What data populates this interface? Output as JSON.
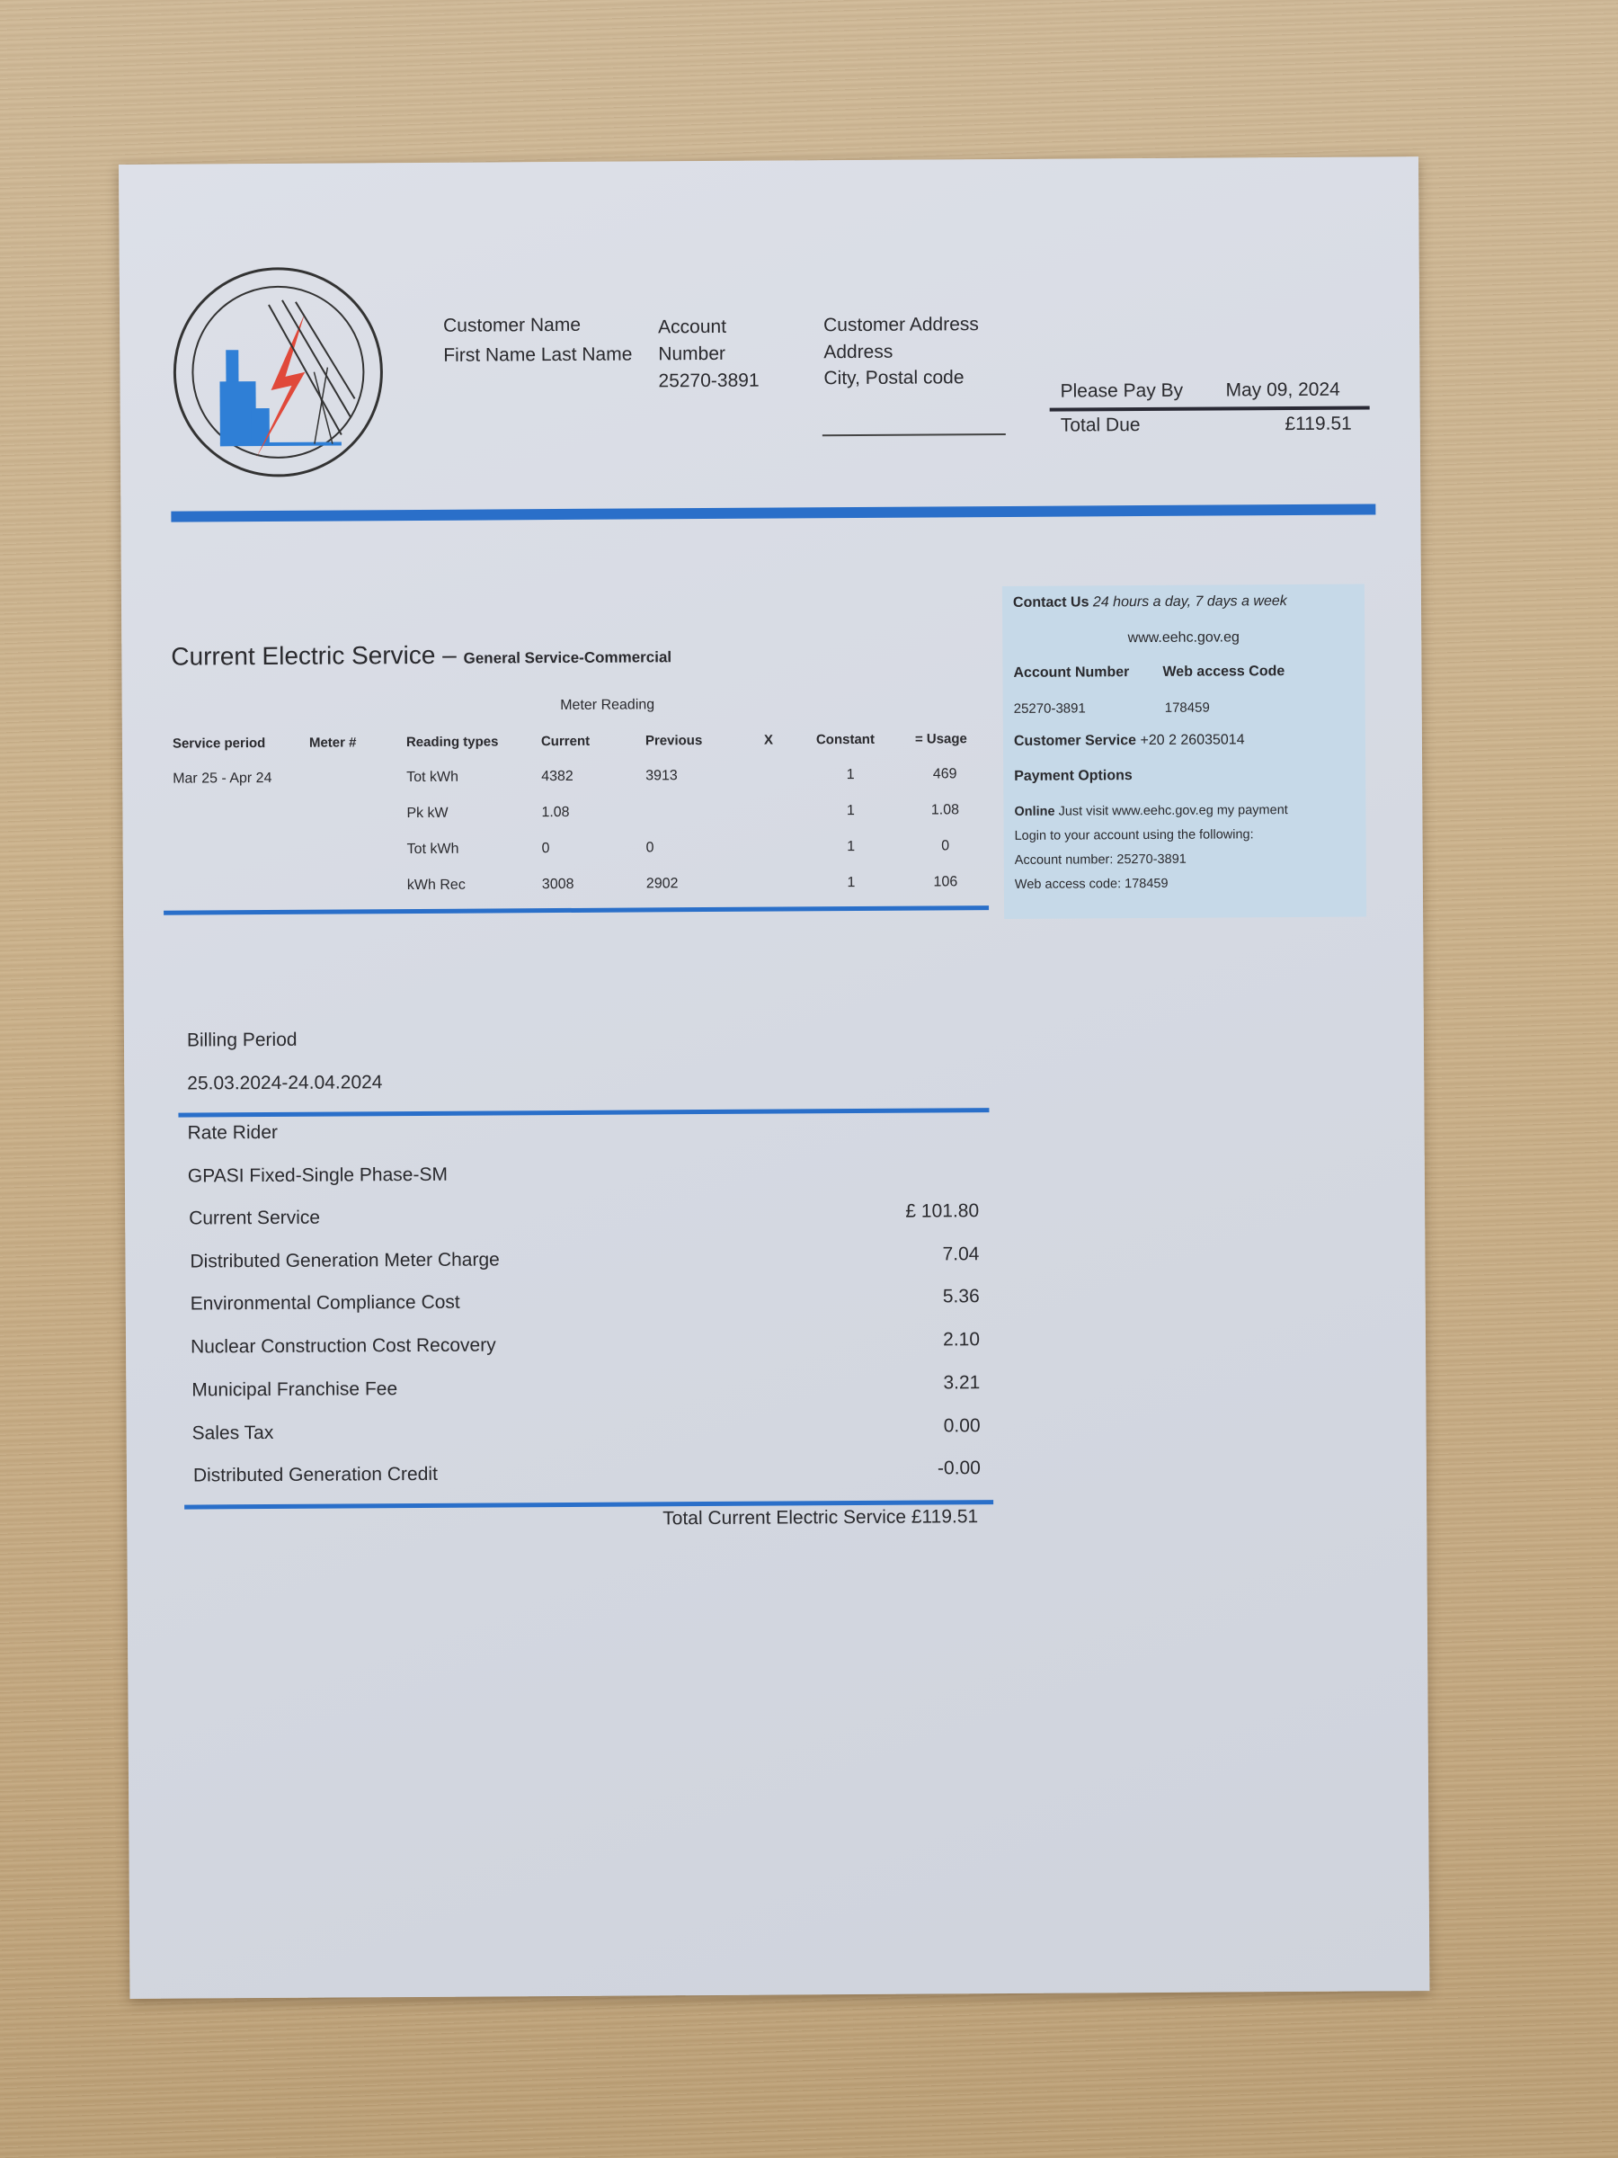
{
  "header": {
    "customer_name_label": "Customer Name",
    "customer_name": "First Name Last Name",
    "account_label_1": "Account",
    "account_label_2": "Number",
    "account_number": "25270-3891",
    "address_label": "Customer Address",
    "address_line": "Address",
    "city_line": "City, Postal code",
    "pay_by_label": "Please Pay By",
    "pay_by_date": "May 09, 2024",
    "total_due_label": "Total Due",
    "total_due": "£119.51"
  },
  "contact": {
    "title": "Contact Us",
    "hours": "24 hours a day, 7 days a week",
    "website": "www.eehc.gov.eg",
    "account_number_label": "Account Number",
    "web_access_label": "Web access Code",
    "account_number": "25270-3891",
    "web_access_code": "178459",
    "customer_service_label": "Customer Service",
    "customer_service_phone": "+20 2 26035014",
    "payment_options_label": "Payment Options",
    "online_label": "Online",
    "online_text": "Just visit  www.eehc.gov.eg  my payment",
    "login_text": "Login to your account using the following:",
    "account_line": "Account number: 25270-3891",
    "code_line": "Web access code: 178459"
  },
  "service": {
    "title": "Current Electric Service",
    "dash": "–",
    "subtitle": "General Service-Commercial",
    "meter_reading_label": "Meter Reading",
    "columns": [
      "Service period",
      "Meter #",
      "Reading types",
      "Current",
      "Previous",
      "X",
      "Constant",
      "= Usage"
    ],
    "service_period": "Mar 25 - Apr 24",
    "rows": [
      {
        "type": "Tot kWh",
        "current": "4382",
        "previous": "3913",
        "constant": "1",
        "usage": "469"
      },
      {
        "type": "Pk kW",
        "current": "1.08",
        "previous": "",
        "constant": "1",
        "usage": "1.08"
      },
      {
        "type": "Tot kWh",
        "current": "0",
        "previous": "0",
        "constant": "1",
        "usage": "0"
      },
      {
        "type": "kWh Rec",
        "current": "3008",
        "previous": "2902",
        "constant": "1",
        "usage": "106"
      }
    ]
  },
  "billing": {
    "period_label": "Billing Period",
    "period": "25.03.2024-24.04.2024",
    "rate_rider_label": "Rate Rider",
    "rate": "GPASI Fixed-Single Phase-SM",
    "charges": [
      {
        "label": "Current Service",
        "amount": "£ 101.80"
      },
      {
        "label": "Distributed Generation Meter Charge",
        "amount": "7.04"
      },
      {
        "label": "Environmental Compliance Cost",
        "amount": "5.36"
      },
      {
        "label": "Nuclear Construction Cost Recovery",
        "amount": "2.10"
      },
      {
        "label": "Municipal Franchise Fee",
        "amount": "3.21"
      },
      {
        "label": "Sales Tax",
        "amount": "0.00"
      },
      {
        "label": "Distributed Generation Credit",
        "amount": "-0.00"
      }
    ],
    "total_text": "Total Current Electric Service £119.51"
  },
  "colors": {
    "accent": "#2a6fc9",
    "contact_box": "#c6d9e8",
    "logo_red": "#e0493a",
    "logo_blue": "#2f7fd6"
  }
}
